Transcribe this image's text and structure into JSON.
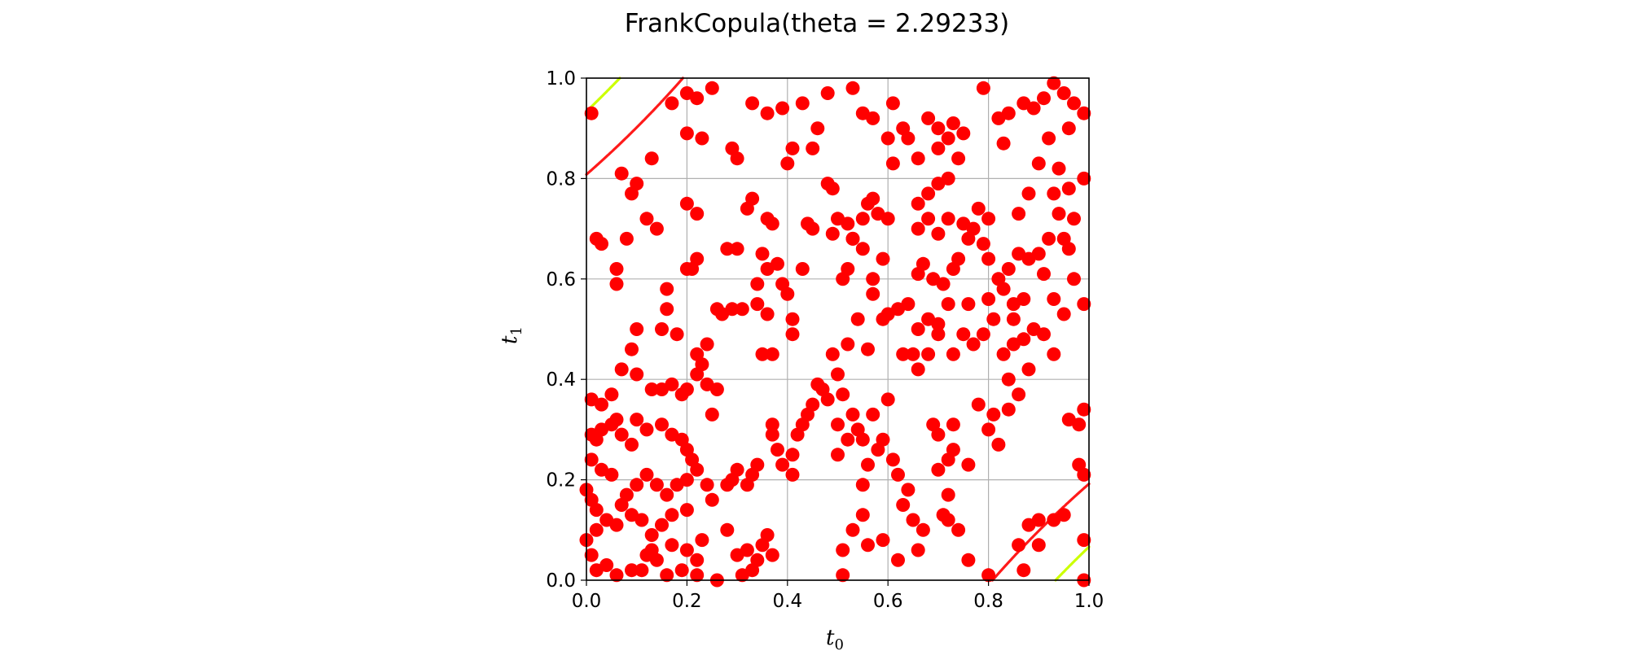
{
  "chart_data": {
    "type": "scatter",
    "title": "FrankCopula(theta = 2.29233)",
    "xlabel": "t",
    "xlabel_sub": "0",
    "ylabel": "t",
    "ylabel_sub": "1",
    "xlim": [
      0.0,
      1.0
    ],
    "ylim": [
      0.0,
      1.0
    ],
    "xticks": [
      "0.0",
      "0.2",
      "0.4",
      "0.6",
      "0.8",
      "1.0"
    ],
    "yticks": [
      "0.0",
      "0.2",
      "0.4",
      "0.6",
      "0.8",
      "1.0"
    ],
    "grid": true,
    "legend": "none",
    "point_color": "#ff0000",
    "theta": 2.29233,
    "contour_levels": [
      0.02,
      0.1,
      0.2,
      0.3,
      0.4
    ],
    "contour_colors": [
      "#cc00ff",
      "#1f6bff",
      "#00ff66",
      "#ccff00",
      "#ff1a1a"
    ],
    "points": [
      [
        0.01,
        0.93
      ],
      [
        0.07,
        0.81
      ],
      [
        0.1,
        0.79
      ],
      [
        0.09,
        0.77
      ],
      [
        0.13,
        0.84
      ],
      [
        0.17,
        0.95
      ],
      [
        0.2,
        0.97
      ],
      [
        0.22,
        0.96
      ],
      [
        0.25,
        0.98
      ],
      [
        0.2,
        0.89
      ],
      [
        0.23,
        0.88
      ],
      [
        0.29,
        0.86
      ],
      [
        0.3,
        0.84
      ],
      [
        0.33,
        0.95
      ],
      [
        0.36,
        0.93
      ],
      [
        0.39,
        0.94
      ],
      [
        0.43,
        0.95
      ],
      [
        0.46,
        0.9
      ],
      [
        0.48,
        0.97
      ],
      [
        0.45,
        0.86
      ],
      [
        0.41,
        0.86
      ],
      [
        0.4,
        0.83
      ],
      [
        0.53,
        0.98
      ],
      [
        0.55,
        0.93
      ],
      [
        0.57,
        0.92
      ],
      [
        0.61,
        0.95
      ],
      [
        0.6,
        0.88
      ],
      [
        0.61,
        0.83
      ],
      [
        0.63,
        0.9
      ],
      [
        0.64,
        0.88
      ],
      [
        0.68,
        0.92
      ],
      [
        0.7,
        0.9
      ],
      [
        0.72,
        0.88
      ],
      [
        0.73,
        0.91
      ],
      [
        0.75,
        0.89
      ],
      [
        0.79,
        0.98
      ],
      [
        0.82,
        0.92
      ],
      [
        0.83,
        0.87
      ],
      [
        0.84,
        0.93
      ],
      [
        0.87,
        0.95
      ],
      [
        0.89,
        0.94
      ],
      [
        0.91,
        0.96
      ],
      [
        0.93,
        0.99
      ],
      [
        0.95,
        0.97
      ],
      [
        0.97,
        0.95
      ],
      [
        0.99,
        0.93
      ],
      [
        0.96,
        0.9
      ],
      [
        0.92,
        0.88
      ],
      [
        0.9,
        0.83
      ],
      [
        0.94,
        0.82
      ],
      [
        0.96,
        0.78
      ],
      [
        0.99,
        0.8
      ],
      [
        0.93,
        0.77
      ],
      [
        0.88,
        0.77
      ],
      [
        0.86,
        0.73
      ],
      [
        0.8,
        0.72
      ],
      [
        0.78,
        0.74
      ],
      [
        0.77,
        0.7
      ],
      [
        0.75,
        0.71
      ],
      [
        0.72,
        0.72
      ],
      [
        0.7,
        0.69
      ],
      [
        0.68,
        0.72
      ],
      [
        0.66,
        0.7
      ],
      [
        0.66,
        0.75
      ],
      [
        0.68,
        0.77
      ],
      [
        0.7,
        0.79
      ],
      [
        0.72,
        0.8
      ],
      [
        0.74,
        0.84
      ],
      [
        0.7,
        0.86
      ],
      [
        0.66,
        0.84
      ],
      [
        0.02,
        0.68
      ],
      [
        0.03,
        0.67
      ],
      [
        0.06,
        0.62
      ],
      [
        0.06,
        0.59
      ],
      [
        0.08,
        0.68
      ],
      [
        0.1,
        0.5
      ],
      [
        0.09,
        0.46
      ],
      [
        0.12,
        0.72
      ],
      [
        0.14,
        0.7
      ],
      [
        0.16,
        0.58
      ],
      [
        0.16,
        0.54
      ],
      [
        0.15,
        0.5
      ],
      [
        0.18,
        0.49
      ],
      [
        0.2,
        0.62
      ],
      [
        0.21,
        0.62
      ],
      [
        0.22,
        0.64
      ],
      [
        0.2,
        0.75
      ],
      [
        0.22,
        0.73
      ],
      [
        0.24,
        0.47
      ],
      [
        0.22,
        0.45
      ],
      [
        0.23,
        0.43
      ],
      [
        0.26,
        0.54
      ],
      [
        0.27,
        0.53
      ],
      [
        0.29,
        0.54
      ],
      [
        0.31,
        0.54
      ],
      [
        0.28,
        0.66
      ],
      [
        0.3,
        0.66
      ],
      [
        0.32,
        0.74
      ],
      [
        0.33,
        0.76
      ],
      [
        0.36,
        0.72
      ],
      [
        0.37,
        0.71
      ],
      [
        0.35,
        0.65
      ],
      [
        0.36,
        0.62
      ],
      [
        0.38,
        0.63
      ],
      [
        0.39,
        0.59
      ],
      [
        0.4,
        0.57
      ],
      [
        0.34,
        0.59
      ],
      [
        0.34,
        0.55
      ],
      [
        0.36,
        0.53
      ],
      [
        0.37,
        0.45
      ],
      [
        0.35,
        0.45
      ],
      [
        0.41,
        0.52
      ],
      [
        0.41,
        0.49
      ],
      [
        0.43,
        0.62
      ],
      [
        0.44,
        0.71
      ],
      [
        0.45,
        0.7
      ],
      [
        0.49,
        0.78
      ],
      [
        0.48,
        0.79
      ],
      [
        0.5,
        0.72
      ],
      [
        0.49,
        0.69
      ],
      [
        0.52,
        0.71
      ],
      [
        0.53,
        0.68
      ],
      [
        0.55,
        0.72
      ],
      [
        0.56,
        0.75
      ],
      [
        0.57,
        0.76
      ],
      [
        0.58,
        0.73
      ],
      [
        0.6,
        0.72
      ],
      [
        0.59,
        0.64
      ],
      [
        0.6,
        0.53
      ],
      [
        0.59,
        0.52
      ],
      [
        0.62,
        0.54
      ],
      [
        0.64,
        0.55
      ],
      [
        0.66,
        0.61
      ],
      [
        0.67,
        0.63
      ],
      [
        0.69,
        0.6
      ],
      [
        0.71,
        0.59
      ],
      [
        0.73,
        0.62
      ],
      [
        0.74,
        0.64
      ],
      [
        0.76,
        0.68
      ],
      [
        0.79,
        0.67
      ],
      [
        0.8,
        0.64
      ],
      [
        0.82,
        0.6
      ],
      [
        0.84,
        0.62
      ],
      [
        0.86,
        0.65
      ],
      [
        0.88,
        0.64
      ],
      [
        0.91,
        0.61
      ],
      [
        0.93,
        0.56
      ],
      [
        0.95,
        0.53
      ],
      [
        0.97,
        0.6
      ],
      [
        0.99,
        0.55
      ],
      [
        0.99,
        0.34
      ],
      [
        0.98,
        0.31
      ],
      [
        0.96,
        0.32
      ],
      [
        0.98,
        0.23
      ],
      [
        0.99,
        0.21
      ],
      [
        0.95,
        0.13
      ],
      [
        0.93,
        0.12
      ],
      [
        0.9,
        0.12
      ],
      [
        0.88,
        0.11
      ],
      [
        0.9,
        0.07
      ],
      [
        0.86,
        0.07
      ],
      [
        0.87,
        0.02
      ],
      [
        0.99,
        0.08
      ],
      [
        0.99,
        0.0
      ],
      [
        0.8,
        0.01
      ],
      [
        0.76,
        0.04
      ],
      [
        0.74,
        0.1
      ],
      [
        0.72,
        0.12
      ],
      [
        0.71,
        0.13
      ],
      [
        0.72,
        0.17
      ],
      [
        0.7,
        0.22
      ],
      [
        0.72,
        0.24
      ],
      [
        0.73,
        0.26
      ],
      [
        0.7,
        0.29
      ],
      [
        0.69,
        0.31
      ],
      [
        0.73,
        0.31
      ],
      [
        0.76,
        0.23
      ],
      [
        0.78,
        0.35
      ],
      [
        0.81,
        0.33
      ],
      [
        0.8,
        0.3
      ],
      [
        0.82,
        0.27
      ],
      [
        0.84,
        0.34
      ],
      [
        0.86,
        0.37
      ],
      [
        0.88,
        0.42
      ],
      [
        0.84,
        0.4
      ],
      [
        0.83,
        0.45
      ],
      [
        0.85,
        0.47
      ],
      [
        0.87,
        0.48
      ],
      [
        0.89,
        0.5
      ],
      [
        0.91,
        0.49
      ],
      [
        0.93,
        0.45
      ],
      [
        0.79,
        0.49
      ],
      [
        0.77,
        0.47
      ],
      [
        0.75,
        0.49
      ],
      [
        0.73,
        0.45
      ],
      [
        0.7,
        0.49
      ],
      [
        0.68,
        0.45
      ],
      [
        0.66,
        0.42
      ],
      [
        0.65,
        0.45
      ],
      [
        0.63,
        0.45
      ],
      [
        0.6,
        0.36
      ],
      [
        0.57,
        0.33
      ],
      [
        0.55,
        0.28
      ],
      [
        0.54,
        0.3
      ],
      [
        0.53,
        0.33
      ],
      [
        0.52,
        0.28
      ],
      [
        0.5,
        0.25
      ],
      [
        0.5,
        0.31
      ],
      [
        0.51,
        0.37
      ],
      [
        0.48,
        0.36
      ],
      [
        0.47,
        0.38
      ],
      [
        0.46,
        0.39
      ],
      [
        0.45,
        0.35
      ],
      [
        0.44,
        0.33
      ],
      [
        0.43,
        0.31
      ],
      [
        0.42,
        0.29
      ],
      [
        0.41,
        0.25
      ],
      [
        0.41,
        0.21
      ],
      [
        0.39,
        0.23
      ],
      [
        0.38,
        0.26
      ],
      [
        0.37,
        0.29
      ],
      [
        0.37,
        0.31
      ],
      [
        0.34,
        0.23
      ],
      [
        0.33,
        0.21
      ],
      [
        0.32,
        0.19
      ],
      [
        0.3,
        0.22
      ],
      [
        0.29,
        0.2
      ],
      [
        0.28,
        0.19
      ],
      [
        0.28,
        0.1
      ],
      [
        0.3,
        0.05
      ],
      [
        0.32,
        0.06
      ],
      [
        0.34,
        0.04
      ],
      [
        0.35,
        0.07
      ],
      [
        0.36,
        0.09
      ],
      [
        0.37,
        0.05
      ],
      [
        0.33,
        0.02
      ],
      [
        0.31,
        0.01
      ],
      [
        0.26,
        0.0
      ],
      [
        0.22,
        0.04
      ],
      [
        0.22,
        0.01
      ],
      [
        0.19,
        0.02
      ],
      [
        0.16,
        0.01
      ],
      [
        0.14,
        0.04
      ],
      [
        0.13,
        0.06
      ],
      [
        0.12,
        0.05
      ],
      [
        0.11,
        0.02
      ],
      [
        0.09,
        0.02
      ],
      [
        0.06,
        0.01
      ],
      [
        0.04,
        0.03
      ],
      [
        0.02,
        0.02
      ],
      [
        0.01,
        0.05
      ],
      [
        0.0,
        0.08
      ],
      [
        0.02,
        0.1
      ],
      [
        0.04,
        0.12
      ],
      [
        0.06,
        0.11
      ],
      [
        0.07,
        0.15
      ],
      [
        0.08,
        0.17
      ],
      [
        0.1,
        0.19
      ],
      [
        0.12,
        0.21
      ],
      [
        0.14,
        0.19
      ],
      [
        0.16,
        0.17
      ],
      [
        0.18,
        0.19
      ],
      [
        0.17,
        0.13
      ],
      [
        0.15,
        0.11
      ],
      [
        0.13,
        0.09
      ],
      [
        0.11,
        0.12
      ],
      [
        0.09,
        0.13
      ],
      [
        0.05,
        0.21
      ],
      [
        0.03,
        0.22
      ],
      [
        0.01,
        0.24
      ],
      [
        0.02,
        0.28
      ],
      [
        0.03,
        0.3
      ],
      [
        0.05,
        0.31
      ],
      [
        0.06,
        0.32
      ],
      [
        0.07,
        0.29
      ],
      [
        0.09,
        0.27
      ],
      [
        0.1,
        0.32
      ],
      [
        0.12,
        0.3
      ],
      [
        0.15,
        0.31
      ],
      [
        0.17,
        0.29
      ],
      [
        0.19,
        0.28
      ],
      [
        0.2,
        0.26
      ],
      [
        0.21,
        0.24
      ],
      [
        0.22,
        0.22
      ],
      [
        0.24,
        0.19
      ],
      [
        0.25,
        0.16
      ],
      [
        0.2,
        0.14
      ],
      [
        0.2,
        0.2
      ],
      [
        0.23,
        0.08
      ],
      [
        0.2,
        0.06
      ],
      [
        0.17,
        0.07
      ],
      [
        0.25,
        0.33
      ],
      [
        0.26,
        0.38
      ],
      [
        0.24,
        0.39
      ],
      [
        0.22,
        0.41
      ],
      [
        0.2,
        0.38
      ],
      [
        0.19,
        0.37
      ],
      [
        0.17,
        0.39
      ],
      [
        0.15,
        0.38
      ],
      [
        0.13,
        0.38
      ],
      [
        0.1,
        0.41
      ],
      [
        0.07,
        0.42
      ],
      [
        0.05,
        0.37
      ],
      [
        0.03,
        0.35
      ],
      [
        0.01,
        0.36
      ],
      [
        0.01,
        0.29
      ],
      [
        0.0,
        0.18
      ],
      [
        0.01,
        0.16
      ],
      [
        0.02,
        0.14
      ],
      [
        0.51,
        0.01
      ],
      [
        0.51,
        0.06
      ],
      [
        0.53,
        0.1
      ],
      [
        0.55,
        0.13
      ],
      [
        0.55,
        0.19
      ],
      [
        0.56,
        0.23
      ],
      [
        0.58,
        0.26
      ],
      [
        0.59,
        0.28
      ],
      [
        0.61,
        0.24
      ],
      [
        0.62,
        0.21
      ],
      [
        0.64,
        0.18
      ],
      [
        0.63,
        0.15
      ],
      [
        0.65,
        0.12
      ],
      [
        0.67,
        0.1
      ],
      [
        0.66,
        0.06
      ],
      [
        0.62,
        0.04
      ],
      [
        0.59,
        0.08
      ],
      [
        0.56,
        0.07
      ],
      [
        0.56,
        0.46
      ],
      [
        0.57,
        0.57
      ],
      [
        0.52,
        0.62
      ],
      [
        0.51,
        0.6
      ],
      [
        0.49,
        0.45
      ],
      [
        0.5,
        0.41
      ],
      [
        0.52,
        0.47
      ],
      [
        0.54,
        0.52
      ],
      [
        0.57,
        0.6
      ],
      [
        0.55,
        0.66
      ],
      [
        0.53,
        0.68
      ],
      [
        0.96,
        0.66
      ],
      [
        0.92,
        0.68
      ],
      [
        0.9,
        0.65
      ],
      [
        0.95,
        0.68
      ],
      [
        0.94,
        0.73
      ],
      [
        0.97,
        0.72
      ],
      [
        0.8,
        0.56
      ],
      [
        0.83,
        0.58
      ],
      [
        0.85,
        0.55
      ],
      [
        0.87,
        0.56
      ],
      [
        0.85,
        0.52
      ],
      [
        0.81,
        0.52
      ],
      [
        0.76,
        0.55
      ],
      [
        0.72,
        0.55
      ],
      [
        0.7,
        0.51
      ],
      [
        0.68,
        0.52
      ],
      [
        0.66,
        0.5
      ]
    ]
  }
}
